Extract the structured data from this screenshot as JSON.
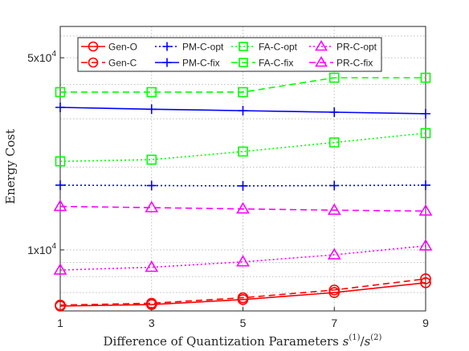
{
  "chart_data": {
    "type": "line",
    "xlabel": "Difference of Quantization Parameters s(1)/s(2)",
    "ylabel": "Energy Cost",
    "x": [
      1,
      3,
      5,
      7,
      9
    ],
    "xticks": [
      "1",
      "3",
      "5",
      "7",
      "9"
    ],
    "xlim": [
      1,
      9
    ],
    "yscale": "log",
    "ylim": [
      6000,
      65000
    ],
    "ytick_labels": [
      {
        "value": 10000,
        "label": "1x10^4"
      },
      {
        "value": 50000,
        "label": "5x10^4"
      }
    ],
    "grid": true,
    "legend_position": "top",
    "series": [
      {
        "name": "Gen-O",
        "color": "#ff0000",
        "dash": "solid",
        "marker": "circle",
        "values": [
          6250,
          6330,
          6600,
          7000,
          7600
        ]
      },
      {
        "name": "PM-C-opt",
        "color": "#0000ff",
        "dash": "dotted",
        "marker": "plus",
        "values": [
          17200,
          17150,
          17100,
          17150,
          17200
        ]
      },
      {
        "name": "FA-C-opt",
        "color": "#00ff00",
        "dash": "dotted",
        "marker": "square",
        "values": [
          21000,
          21300,
          22800,
          24600,
          26600
        ]
      },
      {
        "name": "PR-C-opt",
        "color": "#ff00ff",
        "dash": "dotted",
        "marker": "triangle",
        "values": [
          8450,
          8650,
          9050,
          9600,
          10350
        ]
      },
      {
        "name": "Gen-C",
        "color": "#ff0000",
        "dash": "dashed",
        "marker": "circle",
        "values": [
          6300,
          6400,
          6700,
          7150,
          7850
        ]
      },
      {
        "name": "PM-C-fix",
        "color": "#0000ff",
        "dash": "solid",
        "marker": "plus",
        "values": [
          33000,
          32500,
          32100,
          31700,
          31300
        ]
      },
      {
        "name": "FA-C-fix",
        "color": "#00ff00",
        "dash": "dashed",
        "marker": "square",
        "values": [
          37500,
          37500,
          37500,
          42300,
          42300
        ]
      },
      {
        "name": "PR-C-fix",
        "color": "#ff00ff",
        "dash": "dashed",
        "marker": "triangle",
        "values": [
          14400,
          14250,
          14100,
          13950,
          13850
        ]
      }
    ]
  }
}
